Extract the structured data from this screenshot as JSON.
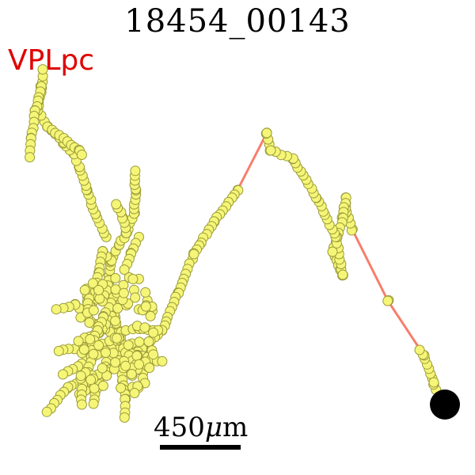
{
  "title": "18454_00143",
  "region_label": "VPLpc",
  "scale": {
    "value": "450",
    "unit_prefix": "μ",
    "unit": "m"
  },
  "colors": {
    "trace": "#f87d6b",
    "node_fill": "#f5f577",
    "node_stroke": "#9a9a3a",
    "soma": "#000000",
    "region_label": "#e00000"
  }
}
